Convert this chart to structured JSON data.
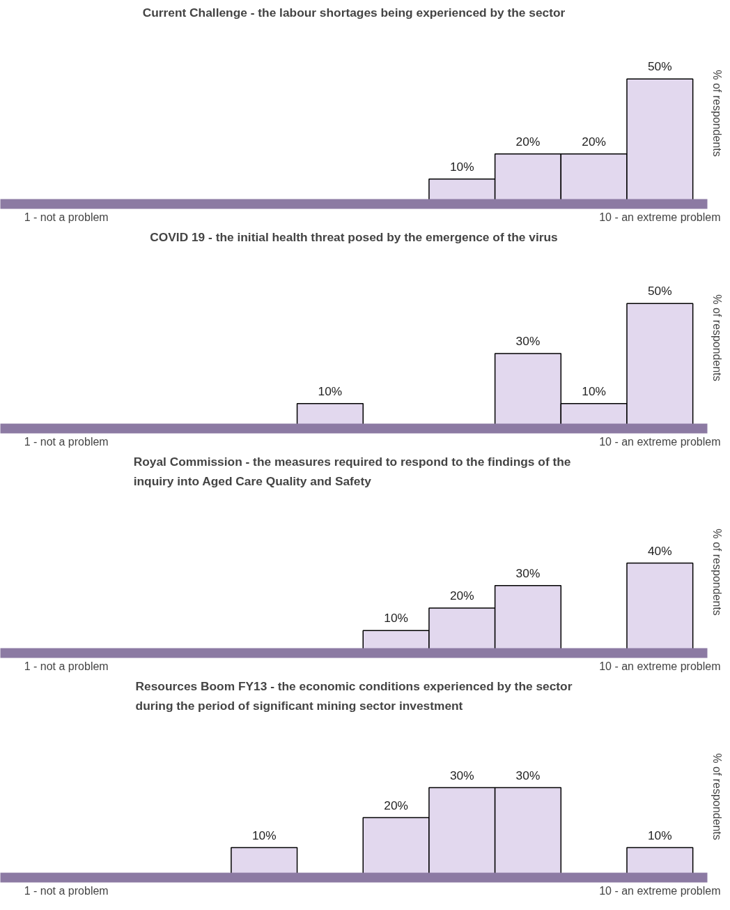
{
  "chart_data": [
    {
      "type": "bar",
      "title": "Current Challenge - the labour shortages being experienced by the sector",
      "ylabel": "% of respondents",
      "categories": [
        "1 - not a problem",
        null,
        null,
        null,
        null,
        null,
        null,
        null,
        null,
        "10 - an extreme problem"
      ],
      "values": [
        null,
        null,
        null,
        null,
        null,
        null,
        10,
        20,
        20,
        50
      ],
      "value_labels": [
        null,
        null,
        null,
        null,
        null,
        null,
        "10%",
        "20%",
        "20%",
        "50%"
      ],
      "color": "#e2d8ee",
      "grid": false
    },
    {
      "type": "bar",
      "title": "COVID 19 - the initial health threat posed by the emergence of the virus",
      "ylabel": "% of respondents",
      "categories": [
        "1 - not a problem",
        null,
        null,
        null,
        null,
        null,
        null,
        null,
        null,
        "10 - an extreme problem"
      ],
      "values": [
        null,
        null,
        null,
        null,
        10,
        null,
        null,
        30,
        10,
        50
      ],
      "value_labels": [
        null,
        null,
        null,
        null,
        "10%",
        null,
        null,
        "30%",
        "10%",
        "50%"
      ],
      "color": "#e2d8ee",
      "grid": false
    },
    {
      "type": "bar",
      "title": "Royal Commission -  the measures required to respond to the findings of the\ninquiry into Aged Care Quality and Safety",
      "ylabel": "% of respondents",
      "categories": [
        "1 - not a problem",
        null,
        null,
        null,
        null,
        null,
        null,
        null,
        null,
        "10 - an extreme problem"
      ],
      "values": [
        null,
        null,
        null,
        null,
        null,
        10,
        20,
        30,
        null,
        40
      ],
      "value_labels": [
        null,
        null,
        null,
        null,
        null,
        "10%",
        "20%",
        "30%",
        null,
        "40%"
      ],
      "color": "#e2d8ee",
      "grid": false
    },
    {
      "type": "bar",
      "title": "Resources Boom FY13 - the economic conditions experienced by the sector\nduring the period of significant mining sector investment",
      "ylabel": "% of respondents",
      "categories": [
        "1 - not a problem",
        null,
        null,
        null,
        null,
        null,
        null,
        null,
        null,
        "10 - an extreme problem"
      ],
      "values": [
        null,
        null,
        null,
        10,
        null,
        20,
        30,
        30,
        null,
        10
      ],
      "value_labels": [
        null,
        null,
        null,
        "10%",
        null,
        "20%",
        "30%",
        "30%",
        null,
        "10%"
      ],
      "color": "#e2d8ee",
      "grid": false
    }
  ]
}
